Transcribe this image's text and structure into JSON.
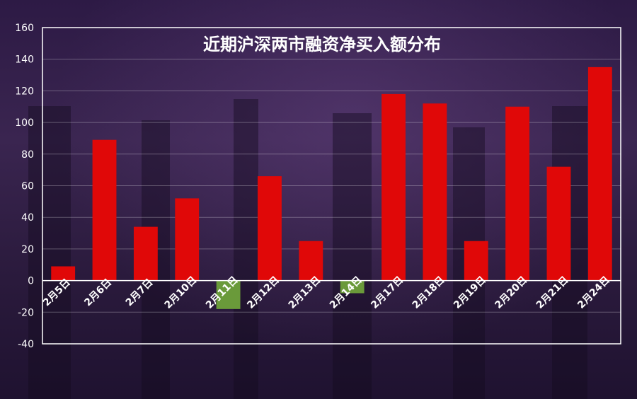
{
  "chart_data": {
    "type": "bar",
    "title": "近期沪深两市融资净买入额分布",
    "xlabel": "",
    "ylabel": "",
    "ylim": [
      -40,
      160
    ],
    "yticks": [
      -40,
      -20,
      0,
      20,
      40,
      60,
      80,
      100,
      120,
      140,
      160
    ],
    "grid": true,
    "categories": [
      "2月5日",
      "2月6日",
      "2月7日",
      "2月10日",
      "2月11日",
      "2月12日",
      "2月13日",
      "2月14日",
      "2月17日",
      "2月18日",
      "2月19日",
      "2月20日",
      "2月21日",
      "2月24日"
    ],
    "values": [
      9,
      89,
      34,
      52,
      -18,
      66,
      25,
      -8,
      118,
      112,
      25,
      110,
      72,
      135
    ],
    "colors": {
      "positive": "#e00808",
      "negative": "#6a9a3a"
    }
  }
}
